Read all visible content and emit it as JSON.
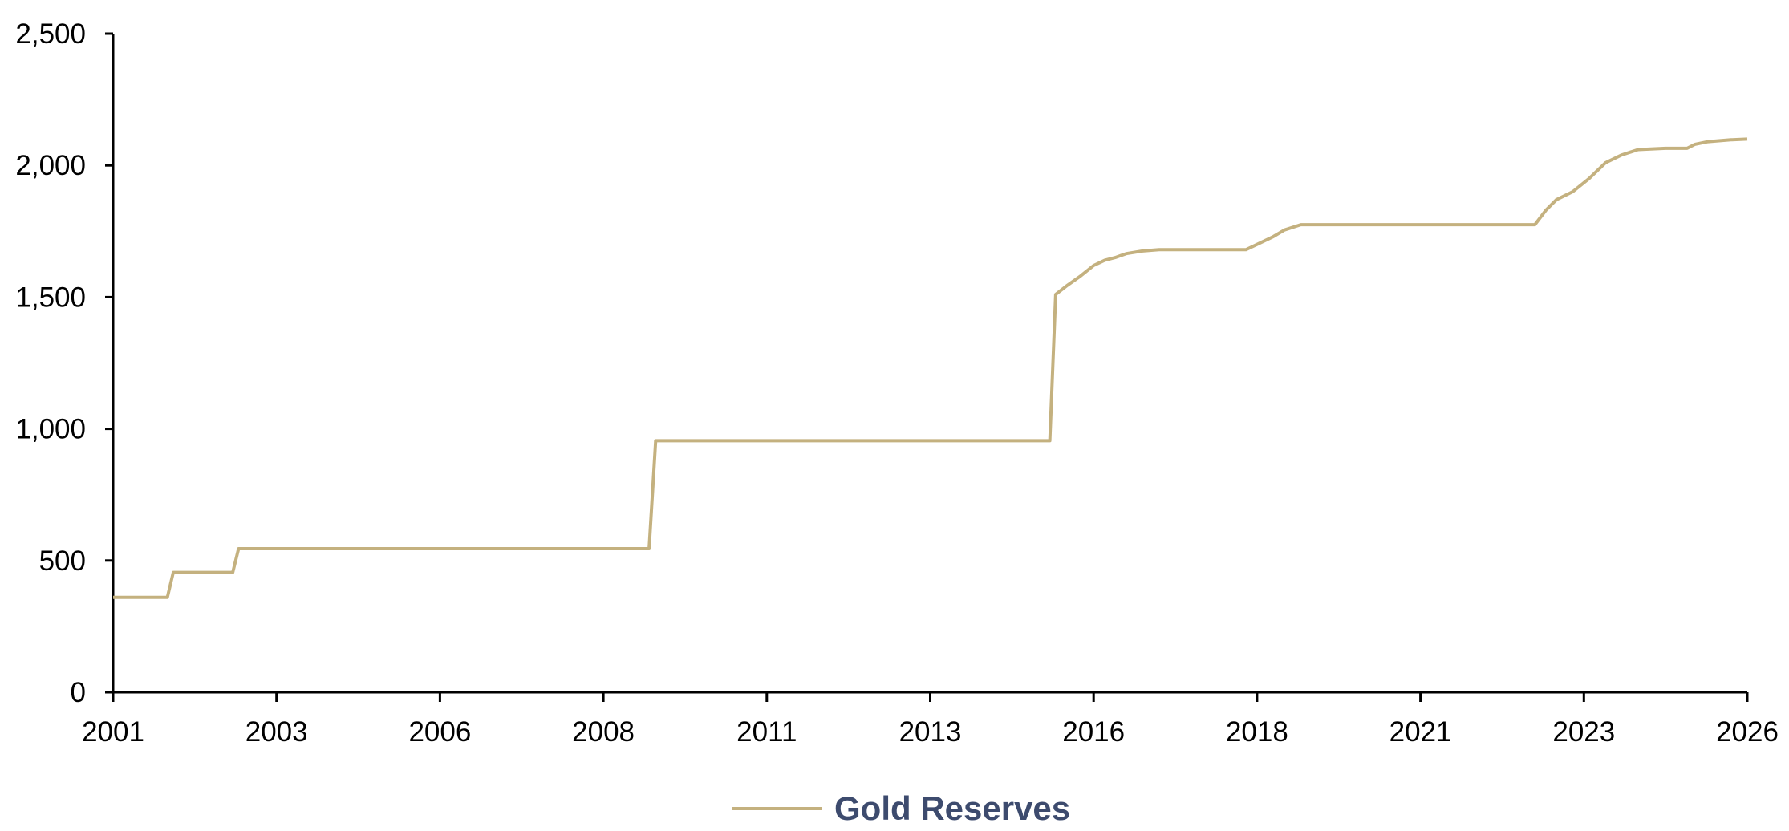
{
  "chart_data": {
    "type": "line",
    "title": "",
    "xlabel": "",
    "ylabel": "",
    "xlim": [
      2001,
      2026
    ],
    "ylim": [
      0,
      2500
    ],
    "x_ticks": [
      "2001",
      "2003",
      "2006",
      "2008",
      "2011",
      "2013",
      "2016",
      "2018",
      "2021",
      "2023",
      "2026"
    ],
    "y_ticks": [
      "0",
      "500",
      "1,000",
      "1,500",
      "2,000",
      "2,500"
    ],
    "grid": false,
    "legend_position": "bottom-center",
    "series": [
      {
        "name": "Gold Reserves",
        "color": "#C4B17F",
        "points": [
          [
            2001.0,
            360
          ],
          [
            2001.83,
            360
          ],
          [
            2001.92,
            455
          ],
          [
            2002.83,
            455
          ],
          [
            2002.92,
            545
          ],
          [
            2009.2,
            545
          ],
          [
            2009.3,
            955
          ],
          [
            2015.33,
            955
          ],
          [
            2015.42,
            1510
          ],
          [
            2015.6,
            1545
          ],
          [
            2015.8,
            1580
          ],
          [
            2016.0,
            1620
          ],
          [
            2016.17,
            1640
          ],
          [
            2016.33,
            1650
          ],
          [
            2016.5,
            1665
          ],
          [
            2016.75,
            1675
          ],
          [
            2017.0,
            1680
          ],
          [
            2018.33,
            1680
          ],
          [
            2018.5,
            1700
          ],
          [
            2018.75,
            1730
          ],
          [
            2018.92,
            1755
          ],
          [
            2019.17,
            1775
          ],
          [
            2022.75,
            1775
          ],
          [
            2022.92,
            1830
          ],
          [
            2023.08,
            1870
          ],
          [
            2023.33,
            1900
          ],
          [
            2023.58,
            1950
          ],
          [
            2023.83,
            2010
          ],
          [
            2024.08,
            2040
          ],
          [
            2024.33,
            2060
          ],
          [
            2024.75,
            2065
          ],
          [
            2025.08,
            2065
          ],
          [
            2025.2,
            2080
          ],
          [
            2025.4,
            2090
          ],
          [
            2025.75,
            2097
          ],
          [
            2026.0,
            2100
          ]
        ]
      }
    ]
  }
}
